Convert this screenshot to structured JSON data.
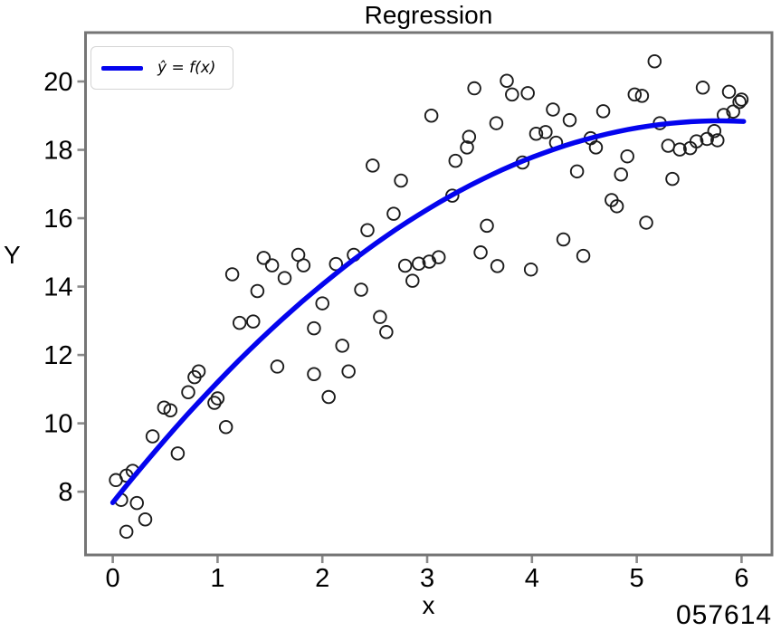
{
  "colors": {
    "fit_line": "#0404ee",
    "marker_edge": "#1c1c1c",
    "spine": "#757575",
    "tick": "#8a8a8a",
    "text": "#000000",
    "legend_border": "#d4d4d4"
  },
  "corner_text": "057614",
  "chart_data": {
    "type": "scatter",
    "title": "Regression",
    "xlabel": "x",
    "ylabel": "Y",
    "grid": false,
    "legend_position": "upper left",
    "x_ticks": [
      0,
      1,
      2,
      3,
      4,
      5,
      6
    ],
    "y_ticks": [
      8,
      10,
      12,
      14,
      16,
      18,
      20
    ],
    "xlim": [
      -0.26,
      6.29
    ],
    "ylim": [
      6.15,
      21.43
    ],
    "series": [
      {
        "name": "observations",
        "type": "scatter",
        "marker": "open-circle",
        "points": [
          [
            0.03,
            8.34
          ],
          [
            0.13,
            8.47
          ],
          [
            0.08,
            7.76
          ],
          [
            0.23,
            7.67
          ],
          [
            0.31,
            7.19
          ],
          [
            0.13,
            6.83
          ],
          [
            0.19,
            8.61
          ],
          [
            0.38,
            9.62
          ],
          [
            0.49,
            10.46
          ],
          [
            0.55,
            10.38
          ],
          [
            0.62,
            9.12
          ],
          [
            0.72,
            10.91
          ],
          [
            0.78,
            11.35
          ],
          [
            0.82,
            11.52
          ],
          [
            0.97,
            10.6
          ],
          [
            1.0,
            10.73
          ],
          [
            1.08,
            9.89
          ],
          [
            1.21,
            12.94
          ],
          [
            1.34,
            12.98
          ],
          [
            1.57,
            11.66
          ],
          [
            1.92,
            11.44
          ],
          [
            1.92,
            12.78
          ],
          [
            1.14,
            14.36
          ],
          [
            1.44,
            14.84
          ],
          [
            1.52,
            14.62
          ],
          [
            1.77,
            14.93
          ],
          [
            1.82,
            14.62
          ],
          [
            1.64,
            14.25
          ],
          [
            1.38,
            13.87
          ],
          [
            2.0,
            13.51
          ],
          [
            2.55,
            13.11
          ],
          [
            2.61,
            12.67
          ],
          [
            2.19,
            12.27
          ],
          [
            2.25,
            11.52
          ],
          [
            2.06,
            10.77
          ],
          [
            2.13,
            14.66
          ],
          [
            2.3,
            14.93
          ],
          [
            2.37,
            13.91
          ],
          [
            2.43,
            15.65
          ],
          [
            2.48,
            17.54
          ],
          [
            2.68,
            16.13
          ],
          [
            2.75,
            17.1
          ],
          [
            2.79,
            14.61
          ],
          [
            2.86,
            14.17
          ],
          [
            2.92,
            14.67
          ],
          [
            3.02,
            14.73
          ],
          [
            3.11,
            14.86
          ],
          [
            3.04,
            19.0
          ],
          [
            3.24,
            16.66
          ],
          [
            3.27,
            17.68
          ],
          [
            3.38,
            18.07
          ],
          [
            3.4,
            18.38
          ],
          [
            3.45,
            19.8
          ],
          [
            3.51,
            15.0
          ],
          [
            3.57,
            15.78
          ],
          [
            3.66,
            18.78
          ],
          [
            3.67,
            14.6
          ],
          [
            3.76,
            20.02
          ],
          [
            3.81,
            19.62
          ],
          [
            3.91,
            17.63
          ],
          [
            3.96,
            19.66
          ],
          [
            3.99,
            14.5
          ],
          [
            4.04,
            18.47
          ],
          [
            4.13,
            18.52
          ],
          [
            4.2,
            19.18
          ],
          [
            4.36,
            18.87
          ],
          [
            4.68,
            19.13
          ],
          [
            4.23,
            18.21
          ],
          [
            4.56,
            18.34
          ],
          [
            4.61,
            18.07
          ],
          [
            4.43,
            17.37
          ],
          [
            4.85,
            17.28
          ],
          [
            4.91,
            17.81
          ],
          [
            4.76,
            16.53
          ],
          [
            4.81,
            16.35
          ],
          [
            4.3,
            15.38
          ],
          [
            4.49,
            14.9
          ],
          [
            5.09,
            15.87
          ],
          [
            4.98,
            19.62
          ],
          [
            5.05,
            19.58
          ],
          [
            5.17,
            20.59
          ],
          [
            5.22,
            18.78
          ],
          [
            5.3,
            18.12
          ],
          [
            5.34,
            17.15
          ],
          [
            5.41,
            18.01
          ],
          [
            5.51,
            18.05
          ],
          [
            5.57,
            18.25
          ],
          [
            5.63,
            19.82
          ],
          [
            5.67,
            18.32
          ],
          [
            5.74,
            18.55
          ],
          [
            5.77,
            18.28
          ],
          [
            5.88,
            19.7
          ],
          [
            5.98,
            19.4
          ],
          [
            5.92,
            19.12
          ],
          [
            5.83,
            19.02
          ],
          [
            6.0,
            19.47
          ]
        ]
      },
      {
        "name": "fit",
        "type": "line",
        "label": "ŷ = f(x)",
        "fit": "quadratic",
        "coefficients": {
          "a": 7.68,
          "b": 3.857,
          "c": -0.333
        },
        "x_range": [
          0.0,
          6.02
        ],
        "endpoints": [
          [
            0.0,
            7.68
          ],
          [
            6.02,
            18.84
          ]
        ]
      }
    ]
  }
}
